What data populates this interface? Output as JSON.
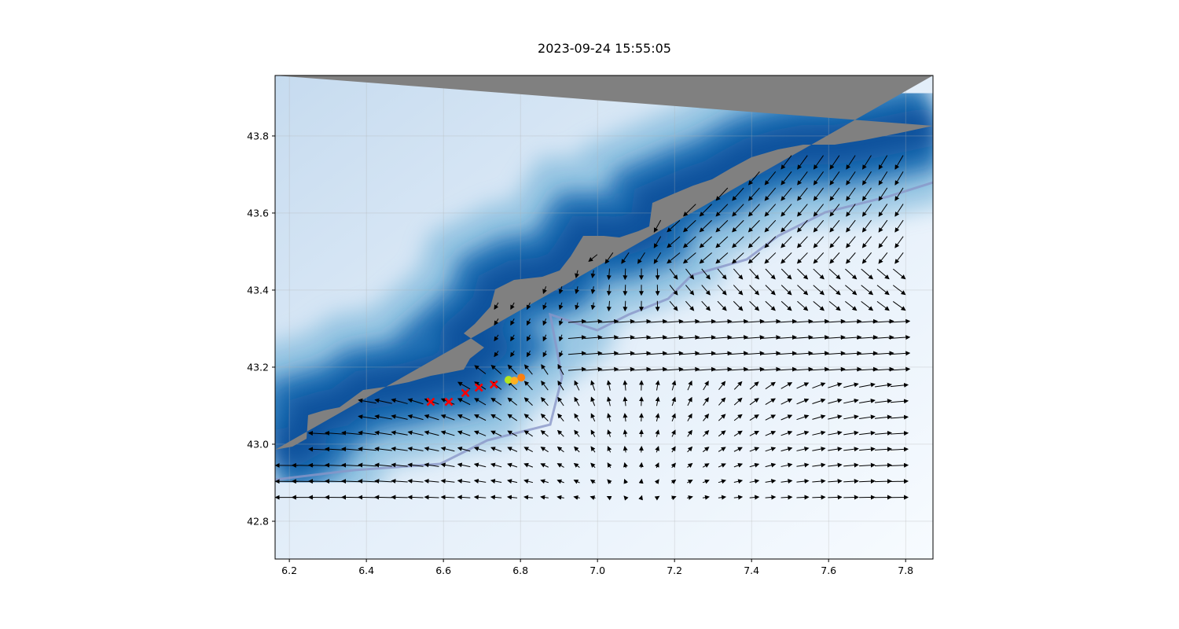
{
  "title": "2023-09-24 15:55:05",
  "chart_data": {
    "type": "map",
    "title": "2023-09-24 15:55:05",
    "xlim": [
      6.163,
      7.871
    ],
    "ylim": [
      42.702,
      43.957
    ],
    "x_ticks": [
      "6.2",
      "6.4",
      "6.6",
      "6.8",
      "7.0",
      "7.2",
      "7.4",
      "7.6",
      "7.8"
    ],
    "y_ticks": [
      "42.8",
      "43.0",
      "43.2",
      "43.4",
      "43.6",
      "43.8"
    ],
    "grid": true,
    "layers": [
      "land (gray)",
      "bathymetry (blues colormap)",
      "current vectors (quiver)",
      "isobath contour"
    ],
    "colors": {
      "land": "#808080",
      "deep": "#08306b",
      "shallow": "#f7fbff",
      "cross": "#ff0000",
      "contour": "#1a1aa0"
    },
    "cross_markers": [
      {
        "lon": 6.567,
        "lat": 43.11
      },
      {
        "lon": 6.614,
        "lat": 43.11
      },
      {
        "lon": 6.657,
        "lat": 43.133
      },
      {
        "lon": 6.692,
        "lat": 43.147
      },
      {
        "lon": 6.731,
        "lat": 43.155
      }
    ],
    "circle_markers": [
      {
        "lon": 6.769,
        "lat": 43.167,
        "color": "#b5e61d"
      },
      {
        "lon": 6.784,
        "lat": 43.165,
        "color": "#ffb020"
      },
      {
        "lon": 6.802,
        "lat": 43.173,
        "color": "#ff7f0e"
      }
    ]
  }
}
